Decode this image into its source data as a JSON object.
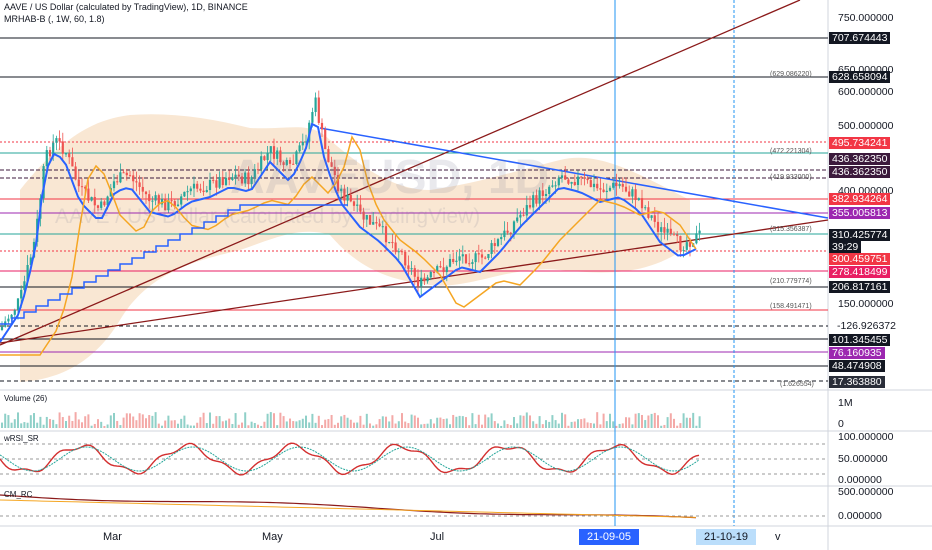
{
  "header": {
    "symbol_line": "AAVE / US Dollar (calculated by TradingView), 1D, BINANCE",
    "indicator_line": "MRHAB-B (, 1W, 60, 1.8)",
    "watermark_symbol": "AAVEUSD, 1D",
    "watermark_name": "AAVE / US Dollar (calculated by TradingView)"
  },
  "price_axis": {
    "ticks": [
      "750.000000",
      "650.000000",
      "600.000000",
      "500.000000",
      "400.000000",
      "150.000000"
    ],
    "labels": [
      {
        "text": "707.674443",
        "bg": "#131722",
        "fg": "#ffffff"
      },
      {
        "text": "628.658094",
        "bg": "#131722",
        "fg": "#ffffff"
      },
      {
        "text": "495.734241",
        "bg": "#f23645",
        "fg": "#ffffff"
      },
      {
        "text": "436.362350",
        "bg": "#3c1a3c",
        "fg": "#ffffff"
      },
      {
        "text": "436.362350",
        "bg": "#3c1a3c",
        "fg": "#ffffff"
      },
      {
        "text": "382.934264",
        "bg": "#f23645",
        "fg": "#ffffff"
      },
      {
        "text": "355.005813",
        "bg": "#9c27b0",
        "fg": "#ffffff"
      },
      {
        "text": "310.425774",
        "bg": "#131722",
        "fg": "#ffffff"
      },
      {
        "text": "39:29",
        "bg": "#131722",
        "fg": "#ffffff"
      },
      {
        "text": "300.459751",
        "bg": "#f23645",
        "fg": "#ffffff"
      },
      {
        "text": "278.418499",
        "bg": "#e91e63",
        "fg": "#ffffff"
      },
      {
        "text": "206.817161",
        "bg": "#131722",
        "fg": "#ffffff"
      },
      {
        "text": "-126.926372",
        "bg": "#ffffff",
        "fg": "#131722"
      },
      {
        "text": "101.345455",
        "bg": "#131722",
        "fg": "#ffffff"
      },
      {
        "text": "76.160935",
        "bg": "#9c27b0",
        "fg": "#ffffff"
      },
      {
        "text": "48.474908",
        "bg": "#131722",
        "fg": "#ffffff"
      },
      {
        "text": "17.363880",
        "bg": "#2a2e39",
        "fg": "#ffffff"
      }
    ],
    "small_labels": [
      "(629.086220)",
      "(472.221304)",
      "(419.933000)",
      "(315.356387)",
      "(210.779774)",
      "(158.491471)",
      "(1.626554)"
    ]
  },
  "volume_pane": {
    "title": "Volume (26)",
    "ticks": [
      "1M",
      "0"
    ]
  },
  "rsi_pane": {
    "title": "wRSI_SR",
    "ticks": [
      "100.000000",
      "50.000000",
      "0.000000"
    ]
  },
  "cm_pane": {
    "title": "CM_RC",
    "ticks": [
      "500.000000",
      "0.000000"
    ]
  },
  "time_axis": {
    "labels": [
      "Mar",
      "May",
      "Jul"
    ],
    "crosshair_date": "21-09-05",
    "current_date": "21-10-19",
    "scroll_glyph": "v"
  },
  "colors": {
    "up": "#26a69a",
    "down": "#ef5350",
    "trend_blue": "#2962ff",
    "trend_maroon": "#8b1a1a",
    "band_fill": "#f7dfc4",
    "ma_orange": "#f5a623",
    "crosshair": "#2196f3"
  }
}
